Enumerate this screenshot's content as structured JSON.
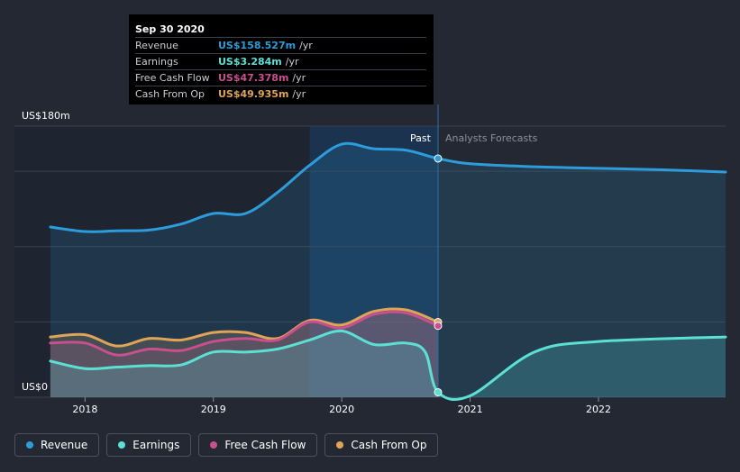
{
  "tooltip": {
    "date": "Sep 30 2020",
    "rows": [
      {
        "label": "Revenue",
        "value": "US$158.527m",
        "unit": "/yr",
        "color": "#2d9cdb"
      },
      {
        "label": "Earnings",
        "value": "US$3.284m",
        "unit": "/yr",
        "color": "#5ce0d4"
      },
      {
        "label": "Free Cash Flow",
        "value": "US$47.378m",
        "unit": "/yr",
        "color": "#c94f8f"
      },
      {
        "label": "Cash From Op",
        "value": "US$49.935m",
        "unit": "/yr",
        "color": "#e0a458"
      }
    ]
  },
  "chart_data": {
    "type": "area",
    "x_range": [
      2017.45,
      2022.99
    ],
    "y_range": [
      0,
      180
    ],
    "divider_x": 2020.75,
    "past_label": "Past",
    "forecast_label": "Analysts Forecasts",
    "y_tick_labels": [
      {
        "value": 180,
        "label": "US$180m"
      },
      {
        "value": 0,
        "label": "US$0"
      }
    ],
    "x_tick_labels": [
      {
        "value": 2018,
        "label": "2018"
      },
      {
        "value": 2019,
        "label": "2019"
      },
      {
        "value": 2020,
        "label": "2020"
      },
      {
        "value": 2021,
        "label": "2021"
      },
      {
        "value": 2022,
        "label": "2022"
      }
    ],
    "gridlines": [
      0,
      50,
      100,
      150,
      180
    ],
    "series": [
      {
        "name": "Cash From Op",
        "color": "#e0a458",
        "x": [
          2017.73,
          2018.0,
          2018.25,
          2018.5,
          2018.75,
          2019.0,
          2019.25,
          2019.5,
          2019.75,
          2020.0,
          2020.25,
          2020.5,
          2020.75
        ],
        "y": [
          40,
          41.5,
          34,
          39,
          38,
          43,
          43,
          39,
          51,
          48,
          57,
          58,
          49.9
        ]
      },
      {
        "name": "Free Cash Flow",
        "color": "#c94f8f",
        "x": [
          2017.73,
          2018.0,
          2018.25,
          2018.5,
          2018.75,
          2019.0,
          2019.25,
          2019.5,
          2019.75,
          2020.0,
          2020.25,
          2020.5,
          2020.75
        ],
        "y": [
          36,
          36,
          28,
          32,
          31,
          37,
          39,
          38,
          50,
          46,
          55,
          56,
          47.4
        ]
      },
      {
        "name": "Earnings",
        "color": "#5ce0d4",
        "x": [
          2017.73,
          2018.0,
          2018.25,
          2018.5,
          2018.75,
          2019.0,
          2019.25,
          2019.5,
          2019.75,
          2020.0,
          2020.25,
          2020.5,
          2020.65,
          2020.75,
          2021.0,
          2021.5,
          2022.0,
          2022.99
        ],
        "y": [
          24,
          19,
          20,
          21,
          21.5,
          30,
          30,
          32,
          38,
          44,
          35,
          36,
          30,
          3.3,
          1,
          30,
          37,
          40
        ]
      },
      {
        "name": "Revenue",
        "color": "#2d9cdb",
        "x": [
          2017.73,
          2018.0,
          2018.25,
          2018.5,
          2018.75,
          2019.0,
          2019.25,
          2019.5,
          2019.75,
          2020.0,
          2020.25,
          2020.5,
          2020.75,
          2021.0,
          2021.5,
          2022.0,
          2022.5,
          2022.99
        ],
        "y": [
          113,
          110,
          110.5,
          111,
          115,
          122,
          122,
          136,
          154,
          168,
          165,
          164,
          158.5,
          155,
          153,
          152,
          151,
          149.5
        ]
      }
    ]
  },
  "legend": [
    {
      "label": "Revenue",
      "color": "#2d9cdb"
    },
    {
      "label": "Earnings",
      "color": "#5ce0d4"
    },
    {
      "label": "Free Cash Flow",
      "color": "#c94f8f"
    },
    {
      "label": "Cash From Op",
      "color": "#e0a458"
    }
  ]
}
